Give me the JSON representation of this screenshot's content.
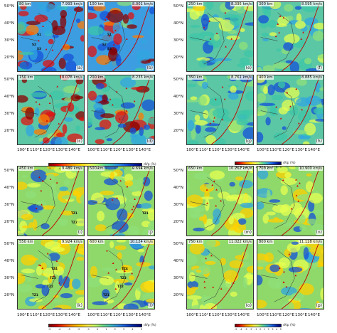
{
  "panels": [
    {
      "id": "a",
      "depth": "80 km",
      "vel": "7.993 km/s"
    },
    {
      "id": "b",
      "depth": "100 km",
      "vel": "8.001 km/s"
    },
    {
      "id": "c",
      "depth": "150 km",
      "vel": "8.078 km/s"
    },
    {
      "id": "d",
      "depth": "200 km",
      "vel": "8.235 km/s"
    },
    {
      "id": "e",
      "depth": "250 km",
      "vel": "8.395 km/s"
    },
    {
      "id": "f",
      "depth": "300 km",
      "vel": "8.595 km/s"
    },
    {
      "id": "g",
      "depth": "350 km",
      "vel": "8.761 km/s"
    },
    {
      "id": "h",
      "depth": "400 km",
      "vel": "8.885 km/s"
    },
    {
      "id": "i",
      "depth": "450 km",
      "vel": "9.489 km/s"
    },
    {
      "id": "j",
      "depth": "500 km",
      "vel": "9.694 km/s"
    },
    {
      "id": "k",
      "depth": "550 km",
      "vel": "9.924 km/s"
    },
    {
      "id": "l",
      "depth": "600 km",
      "vel": "10.124 km/s"
    },
    {
      "id": "m",
      "depth": "650 km",
      "vel": "10.262 km/s"
    },
    {
      "id": "n",
      "depth": "700 km",
      "vel": "10.900 km/s"
    },
    {
      "id": "o",
      "depth": "750 km",
      "vel": "11.022 km/s"
    },
    {
      "id": "p",
      "depth": "800 km",
      "vel": "11.128 km/s"
    }
  ],
  "lat_labels": [
    "50°N",
    "40°N",
    "30°N",
    "20°N"
  ],
  "lon_labels": [
    "100°E",
    "110°E",
    "120°E",
    "130°E",
    "140°E"
  ],
  "colorbar": {
    "label": "dVp (%)",
    "ticks_wide": [
      "-5",
      "-4",
      "-3",
      "-2",
      "-1",
      "0",
      "1",
      "2",
      "3",
      "4",
      "5"
    ],
    "ticks_narrow": [
      "-5",
      "-4",
      "-3",
      "-2",
      "-1",
      "0",
      "1",
      "2",
      "3",
      "4",
      "5"
    ]
  },
  "annotations": {
    "tz": [
      "TZ1",
      "TZ2",
      "TZ3",
      "TZ4"
    ],
    "s_marks": [
      "S1",
      "S2",
      "S3"
    ]
  },
  "colors": {
    "fast": "#0030c0",
    "slow": "#d40000",
    "neutral": "#4fbf9e",
    "boundary": "#c00000"
  }
}
